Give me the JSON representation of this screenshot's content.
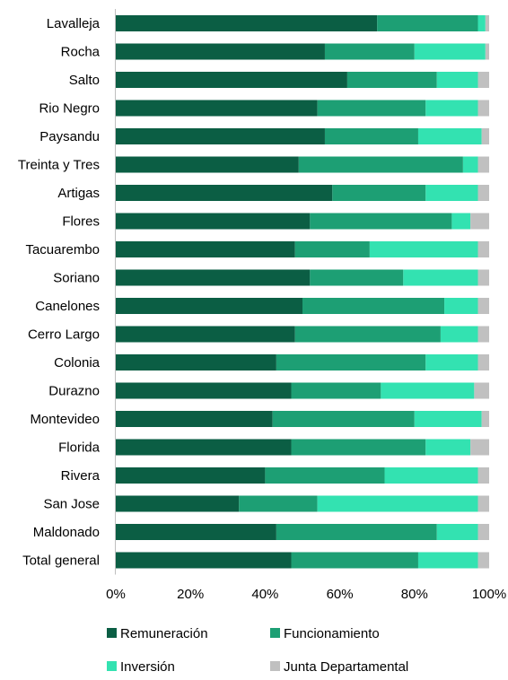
{
  "chart_data": {
    "type": "bar",
    "orientation": "horizontal",
    "stacked": "percent",
    "categories": [
      "Lavalleja",
      "Rocha",
      "Salto",
      "Rio Negro",
      "Paysandu",
      "Treinta y Tres",
      "Artigas",
      "Flores",
      "Tacuarembo",
      "Soriano",
      "Canelones",
      "Cerro Largo",
      "Colonia",
      "Durazno",
      "Montevideo",
      "Florida",
      "Rivera",
      "San Jose",
      "Maldonado",
      "Total general"
    ],
    "series": [
      {
        "name": "Remuneración",
        "color": "#0b5e44",
        "values": [
          70,
          56,
          62,
          54,
          56,
          49,
          58,
          52,
          48,
          52,
          50,
          48,
          43,
          47,
          42,
          47,
          40,
          33,
          43,
          47
        ]
      },
      {
        "name": "Funcionamiento",
        "color": "#1d9f74",
        "values": [
          27,
          24,
          24,
          29,
          25,
          44,
          25,
          38,
          20,
          25,
          38,
          39,
          40,
          24,
          38,
          36,
          32,
          21,
          43,
          34
        ]
      },
      {
        "name": "Inversión",
        "color": "#33e2b1",
        "values": [
          2,
          19,
          11,
          14,
          17,
          4,
          14,
          5,
          29,
          20,
          9,
          10,
          14,
          25,
          18,
          12,
          25,
          43,
          11,
          16
        ]
      },
      {
        "name": "Junta Departamental",
        "color": "#c0c0c0",
        "values": [
          1,
          1,
          3,
          3,
          2,
          3,
          3,
          5,
          3,
          3,
          3,
          3,
          3,
          4,
          2,
          5,
          3,
          3,
          3,
          3
        ]
      }
    ],
    "x_ticks": [
      "0%",
      "20%",
      "40%",
      "60%",
      "80%",
      "100%"
    ],
    "xlim": [
      0,
      100
    ],
    "grid": false,
    "legend_position": "bottom"
  }
}
